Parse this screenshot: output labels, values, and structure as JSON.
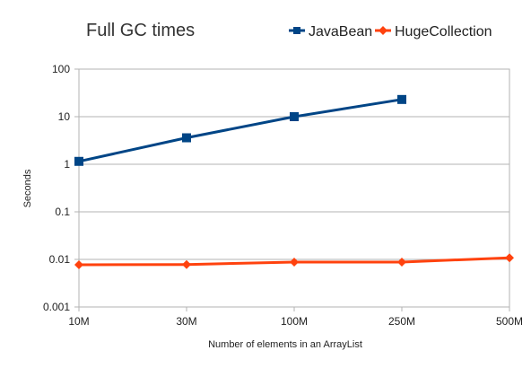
{
  "chart_data": {
    "type": "line",
    "title": "Full GC times",
    "xlabel": "Number of elements in an ArrayList",
    "ylabel": "Seconds",
    "categories": [
      "10M",
      "30M",
      "100M",
      "250M",
      "500M"
    ],
    "yscale": "log",
    "ylim": [
      0.001,
      100
    ],
    "yticks": [
      0.001,
      0.01,
      0.1,
      1,
      10,
      100
    ],
    "ytick_labels": [
      "0.001",
      "0.01",
      "0.1",
      "1",
      "10",
      "100"
    ],
    "grid": "horizontal",
    "legend_position": "top-right",
    "series": [
      {
        "name": "JavaBean",
        "color": "#004586",
        "marker": "square",
        "values": [
          1.15,
          3.6,
          10,
          23,
          null
        ]
      },
      {
        "name": "HugeCollection",
        "color": "#ff420e",
        "marker": "diamond",
        "values": [
          0.0077,
          0.0078,
          0.0088,
          0.0088,
          0.0108
        ]
      }
    ]
  }
}
